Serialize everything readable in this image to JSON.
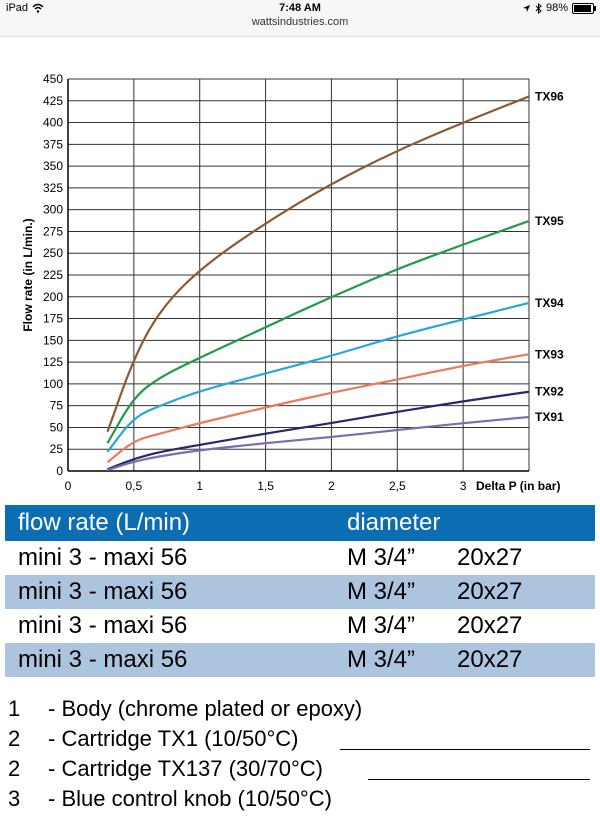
{
  "status_bar": {
    "device": "iPad",
    "time": "7:48 AM",
    "battery": "98%",
    "url": "wattsindustries.com"
  },
  "chart_data": {
    "type": "line",
    "xlabel": "Delta P (in bar)",
    "ylabel": "Flow rate (in L/min.)",
    "xlim": [
      0,
      3.5
    ],
    "ylim": [
      0,
      450
    ],
    "x_ticks": [
      "0",
      "0,5",
      "1",
      "1,5",
      "2",
      "2,5",
      "3"
    ],
    "y_ticks": [
      "0",
      "25",
      "50",
      "75",
      "100",
      "125",
      "150",
      "175",
      "200",
      "225",
      "250",
      "275",
      "300",
      "325",
      "350",
      "375",
      "400",
      "425",
      "450"
    ],
    "grid": true,
    "series": [
      {
        "name": "TX96",
        "color": "#8b5a34",
        "x": [
          0.3,
          0.5,
          0.7,
          1.0,
          1.5,
          2.0,
          2.5,
          3.0,
          3.5
        ],
        "y": [
          45,
          130,
          185,
          232,
          285,
          330,
          368,
          400,
          430
        ]
      },
      {
        "name": "TX95",
        "color": "#1f9c48",
        "x": [
          0.3,
          0.5,
          0.7,
          1.0,
          1.5,
          2.0,
          2.5,
          3.0,
          3.5
        ],
        "y": [
          32,
          85,
          108,
          130,
          165,
          200,
          232,
          260,
          287
        ]
      },
      {
        "name": "TX94",
        "color": "#25a6dd",
        "x": [
          0.3,
          0.5,
          0.7,
          1.0,
          1.5,
          2.0,
          2.5,
          3.0,
          3.5
        ],
        "y": [
          22,
          62,
          75,
          92,
          112,
          132,
          155,
          174,
          193
        ]
      },
      {
        "name": "TX93",
        "color": "#ec7a5a",
        "x": [
          0.3,
          0.5,
          0.7,
          1.0,
          1.5,
          2.0,
          2.5,
          3.0,
          3.5
        ],
        "y": [
          10,
          35,
          43,
          55,
          73,
          90,
          105,
          121,
          134
        ]
      },
      {
        "name": "TX92",
        "color": "#222a6b",
        "x": [
          0.3,
          0.5,
          0.7,
          1.0,
          1.5,
          2.0,
          2.5,
          3.0,
          3.5
        ],
        "y": [
          2,
          14,
          22,
          30,
          43,
          55,
          68,
          80,
          91
        ]
      },
      {
        "name": "TX91",
        "color": "#7b6db0",
        "x": [
          0.3,
          0.5,
          0.7,
          1.0,
          1.5,
          2.0,
          2.5,
          3.0,
          3.5
        ],
        "y": [
          1,
          11,
          17,
          24,
          32,
          39,
          47,
          55,
          62
        ]
      }
    ]
  },
  "table": {
    "header": {
      "c1": "flow rate (L/min)",
      "c2": "diameter",
      "c3": ""
    },
    "rows": [
      {
        "c1": "mini 3 - maxi 56",
        "c2": "M 3/4”",
        "c3": "20x27"
      },
      {
        "c1": "mini 3 - maxi 56",
        "c2": "M 3/4”",
        "c3": "20x27"
      },
      {
        "c1": "mini 3 - maxi 56",
        "c2": "M 3/4”",
        "c3": "20x27"
      },
      {
        "c1": "mini 3 - maxi 56",
        "c2": "M 3/4”",
        "c3": "20x27"
      }
    ]
  },
  "parts_list": [
    {
      "num": "1",
      "text": "- Body (chrome plated or epoxy)"
    },
    {
      "num": "2",
      "text": "- Cartridge TX1 (10/50°C)"
    },
    {
      "num": "2",
      "text": "- Cartridge TX137 (30/70°C)"
    },
    {
      "num": "3",
      "text": "- Blue control knob (10/50°C)"
    }
  ]
}
